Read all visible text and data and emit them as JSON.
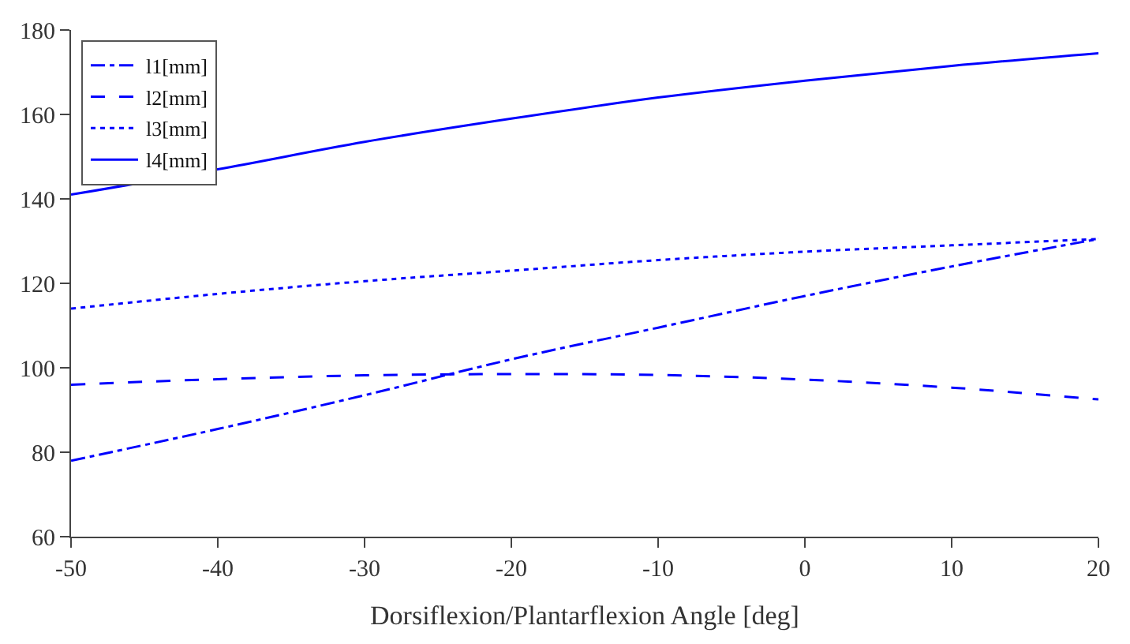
{
  "chart_data": {
    "type": "line",
    "xlabel": "Dorsiflexion/Plantarflexion Angle [deg]",
    "x": [
      -50,
      -40,
      -30,
      -20,
      -10,
      0,
      10,
      20
    ],
    "series": [
      {
        "name": "l1[mm]",
        "color": "#0000ff",
        "line_style": "dashdot",
        "values": [
          78,
          85.5,
          93.5,
          102,
          109.5,
          117,
          124,
          130.5
        ]
      },
      {
        "name": "l2[mm]",
        "color": "#0000ff",
        "line_style": "dashed",
        "values": [
          96,
          97.3,
          98.2,
          98.5,
          98.3,
          97.2,
          95.3,
          92.5
        ]
      },
      {
        "name": "l3[mm]",
        "color": "#0000ff",
        "line_style": "dotted",
        "values": [
          114,
          117.5,
          120.5,
          123,
          125.5,
          127.5,
          129,
          130.5
        ]
      },
      {
        "name": "l4[mm]",
        "color": "#0000ff",
        "line_style": "solid",
        "values": [
          141,
          147,
          153.5,
          159,
          164,
          168,
          171.5,
          174.5
        ]
      }
    ],
    "xlim": [
      -50,
      20
    ],
    "xticks": [
      -50,
      -40,
      -30,
      -20,
      -10,
      0,
      10,
      20
    ],
    "ylim": [
      60,
      180
    ],
    "yticks": [
      60,
      80,
      100,
      120,
      140,
      160,
      180
    ],
    "grid": false,
    "legend": "top left",
    "marker": "none"
  }
}
